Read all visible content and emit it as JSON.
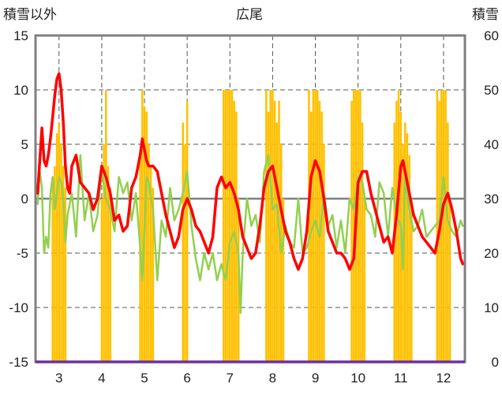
{
  "chart_data": {
    "type": "line",
    "title": "広尾",
    "left_axis_label": "積雪以外",
    "right_axis_label": "積雪",
    "left_ylim": [
      -15,
      15
    ],
    "left_ticks": [
      "15",
      "10",
      "5",
      "0",
      "-5",
      "-10",
      "-15"
    ],
    "right_ylim": [
      0,
      60
    ],
    "right_ticks": [
      "60",
      "50",
      "40",
      "30",
      "20",
      "10",
      "0"
    ],
    "x_ticks": [
      "3",
      "4",
      "5",
      "6",
      "7",
      "8",
      "9",
      "10",
      "11",
      "12"
    ],
    "grid": "vertical dashed at each month, horizontal dashed at 5-unit steps",
    "colors": {
      "red_series": "#ff0000",
      "green_series": "#92d050",
      "bar_series": "#ffc000",
      "zero_line": "#7f7f7f",
      "baseline": "#7030a0",
      "frame": "#808080"
    },
    "series": [
      {
        "type": "line",
        "color_key": "red_series",
        "x": [
          2.5,
          2.55,
          2.6,
          2.65,
          2.7,
          2.75,
          2.8,
          2.85,
          2.9,
          2.95,
          3.0,
          3.05,
          3.1,
          3.15,
          3.2,
          3.25,
          3.3,
          3.4,
          3.5,
          3.6,
          3.7,
          3.8,
          3.9,
          4.0,
          4.05,
          4.1,
          4.2,
          4.3,
          4.4,
          4.5,
          4.6,
          4.7,
          4.8,
          4.9,
          4.95,
          5.0,
          5.05,
          5.1,
          5.2,
          5.3,
          5.4,
          5.5,
          5.6,
          5.7,
          5.8,
          5.9,
          6.0,
          6.1,
          6.2,
          6.3,
          6.4,
          6.5,
          6.6,
          6.7,
          6.8,
          6.9,
          7.0,
          7.1,
          7.2,
          7.3,
          7.4,
          7.5,
          7.6,
          7.7,
          7.8,
          7.9,
          8.0,
          8.1,
          8.2,
          8.3,
          8.4,
          8.5,
          8.6,
          8.7,
          8.8,
          8.9,
          9.0,
          9.1,
          9.2,
          9.3,
          9.4,
          9.5,
          9.6,
          9.7,
          9.8,
          9.9,
          10.0,
          10.1,
          10.2,
          10.3,
          10.4,
          10.5,
          10.6,
          10.7,
          10.8,
          10.9,
          11.0,
          11.05,
          11.1,
          11.2,
          11.3,
          11.4,
          11.5,
          11.6,
          11.7,
          11.8,
          11.9,
          12.0,
          12.1,
          12.2,
          12.3,
          12.4,
          12.45
        ],
        "y": [
          0.5,
          3.5,
          6.5,
          3.5,
          3.0,
          4.0,
          5.5,
          7.5,
          9.5,
          11.0,
          11.5,
          10.0,
          7.0,
          3.0,
          1.0,
          0.5,
          3.0,
          4.0,
          1.5,
          1.0,
          0.5,
          -1.0,
          0.0,
          3.0,
          2.5,
          2.0,
          0.5,
          -2.0,
          -1.5,
          -3.0,
          -2.5,
          1.0,
          2.0,
          4.0,
          5.5,
          4.5,
          3.5,
          3.0,
          3.0,
          2.5,
          0.5,
          -1.5,
          -3.0,
          -4.5,
          -3.5,
          -1.0,
          0.0,
          -1.0,
          -2.5,
          -3.0,
          -4.0,
          -5.0,
          -3.5,
          1.0,
          2.0,
          1.0,
          1.5,
          0.5,
          -1.0,
          -3.5,
          -4.5,
          -5.5,
          -5.0,
          -2.5,
          1.0,
          2.5,
          3.0,
          1.0,
          -1.0,
          -3.0,
          -4.0,
          -5.5,
          -6.5,
          -5.5,
          -3.0,
          2.0,
          3.5,
          2.5,
          0.0,
          -3.0,
          -4.0,
          -5.0,
          -5.0,
          -5.5,
          -6.5,
          -5.5,
          1.5,
          2.5,
          2.5,
          0.5,
          -1.0,
          -2.5,
          -4.0,
          -3.5,
          -5.0,
          -1.5,
          3.0,
          3.5,
          2.5,
          0.5,
          -1.5,
          -2.5,
          -3.5,
          -4.0,
          -4.5,
          -5.0,
          -3.0,
          -0.5,
          0.5,
          -1.0,
          -3.0,
          -5.5,
          -6.0
        ]
      },
      {
        "type": "line",
        "color_key": "green_series",
        "x": [
          2.5,
          2.55,
          2.6,
          2.65,
          2.7,
          2.75,
          2.8,
          2.85,
          2.9,
          3.0,
          3.05,
          3.1,
          3.15,
          3.2,
          3.3,
          3.4,
          3.5,
          3.6,
          3.7,
          3.8,
          3.9,
          4.0,
          4.1,
          4.2,
          4.3,
          4.4,
          4.5,
          4.6,
          4.7,
          4.8,
          4.9,
          4.95,
          5.0,
          5.05,
          5.1,
          5.2,
          5.3,
          5.4,
          5.5,
          5.6,
          5.7,
          5.8,
          5.9,
          6.0,
          6.1,
          6.2,
          6.3,
          6.4,
          6.5,
          6.6,
          6.7,
          6.8,
          6.9,
          7.0,
          7.1,
          7.2,
          7.25,
          7.3,
          7.4,
          7.5,
          7.6,
          7.7,
          7.8,
          7.9,
          8.0,
          8.1,
          8.2,
          8.3,
          8.4,
          8.5,
          8.6,
          8.7,
          8.8,
          8.9,
          9.0,
          9.1,
          9.2,
          9.3,
          9.4,
          9.5,
          9.6,
          9.7,
          9.8,
          9.9,
          10.0,
          10.1,
          10.2,
          10.3,
          10.4,
          10.5,
          10.6,
          10.7,
          10.8,
          10.9,
          11.0,
          11.05,
          11.1,
          11.2,
          11.3,
          11.4,
          11.5,
          11.6,
          11.7,
          11.8,
          11.9,
          12.0,
          12.1,
          12.2,
          12.3,
          12.4,
          12.45
        ],
        "y": [
          -0.5,
          2.5,
          1.0,
          -5.0,
          -3.5,
          -4.5,
          0.5,
          2.0,
          -1.0,
          2.0,
          1.5,
          0.0,
          -4.0,
          -1.5,
          0.5,
          -3.5,
          4.0,
          -2.0,
          0.5,
          -3.0,
          -1.5,
          2.5,
          0.0,
          -1.0,
          -3.0,
          2.0,
          0.5,
          1.5,
          -2.0,
          0.5,
          -4.5,
          -7.5,
          -3.0,
          2.0,
          1.5,
          -1.0,
          -7.5,
          -2.0,
          -3.5,
          1.0,
          -2.0,
          -1.0,
          0.5,
          2.5,
          -2.5,
          -5.5,
          -7.5,
          -5.0,
          -6.5,
          -5.0,
          -7.5,
          -6.0,
          -7.5,
          -4.0,
          -3.0,
          -5.0,
          -10.5,
          -5.0,
          0.0,
          -2.5,
          -1.5,
          -4.0,
          2.5,
          4.0,
          -1.0,
          -0.5,
          -5.0,
          -2.5,
          -4.0,
          -4.5,
          0.0,
          -5.0,
          -4.5,
          -3.0,
          -2.0,
          -3.5,
          0.5,
          -2.5,
          -1.5,
          -4.5,
          -2.0,
          -5.0,
          0.0,
          -1.0,
          2.0,
          1.5,
          -1.0,
          -1.5,
          -3.5,
          1.5,
          0.5,
          -3.5,
          1.0,
          -1.5,
          -2.5,
          -6.5,
          2.0,
          -1.0,
          -3.0,
          -2.5,
          -1.0,
          -3.5,
          -3.0,
          -2.5,
          -2.0,
          2.0,
          -2.0,
          -3.0,
          -3.5,
          -2.0,
          -2.5
        ]
      },
      {
        "type": "bar",
        "axis": "right",
        "color_key": "bar_series",
        "x": [
          2.85,
          2.9,
          2.95,
          3.0,
          3.05,
          3.1,
          3.15,
          4.0,
          4.05,
          4.1,
          4.15,
          4.2,
          4.9,
          4.95,
          5.0,
          5.05,
          5.1,
          5.15,
          5.2,
          5.9,
          5.95,
          6.0,
          6.85,
          6.9,
          6.95,
          7.0,
          7.05,
          7.1,
          7.15,
          7.2,
          7.85,
          7.9,
          7.95,
          8.0,
          8.05,
          8.1,
          8.15,
          8.2,
          8.25,
          8.85,
          8.9,
          8.95,
          9.0,
          9.05,
          9.1,
          9.15,
          9.2,
          9.85,
          9.9,
          9.95,
          10.0,
          10.05,
          10.1,
          10.15,
          10.85,
          10.9,
          10.95,
          11.0,
          11.05,
          11.1,
          11.15,
          11.2,
          11.25,
          11.85,
          11.9,
          11.95,
          12.0,
          12.05,
          12.1,
          12.15
        ],
        "y": [
          32,
          36,
          42,
          44,
          40,
          36,
          32,
          30,
          40,
          50,
          36,
          32,
          38,
          50,
          47,
          46,
          40,
          36,
          32,
          44,
          40,
          48,
          50,
          50,
          50,
          50,
          50,
          48,
          46,
          30,
          50,
          46,
          50,
          50,
          48,
          44,
          48,
          40,
          30,
          50,
          46,
          50,
          50,
          50,
          48,
          46,
          40,
          48,
          50,
          50,
          50,
          50,
          44,
          30,
          44,
          48,
          50,
          46,
          40,
          44,
          42,
          38,
          30,
          50,
          48,
          50,
          50,
          50,
          44,
          30
        ]
      }
    ]
  }
}
